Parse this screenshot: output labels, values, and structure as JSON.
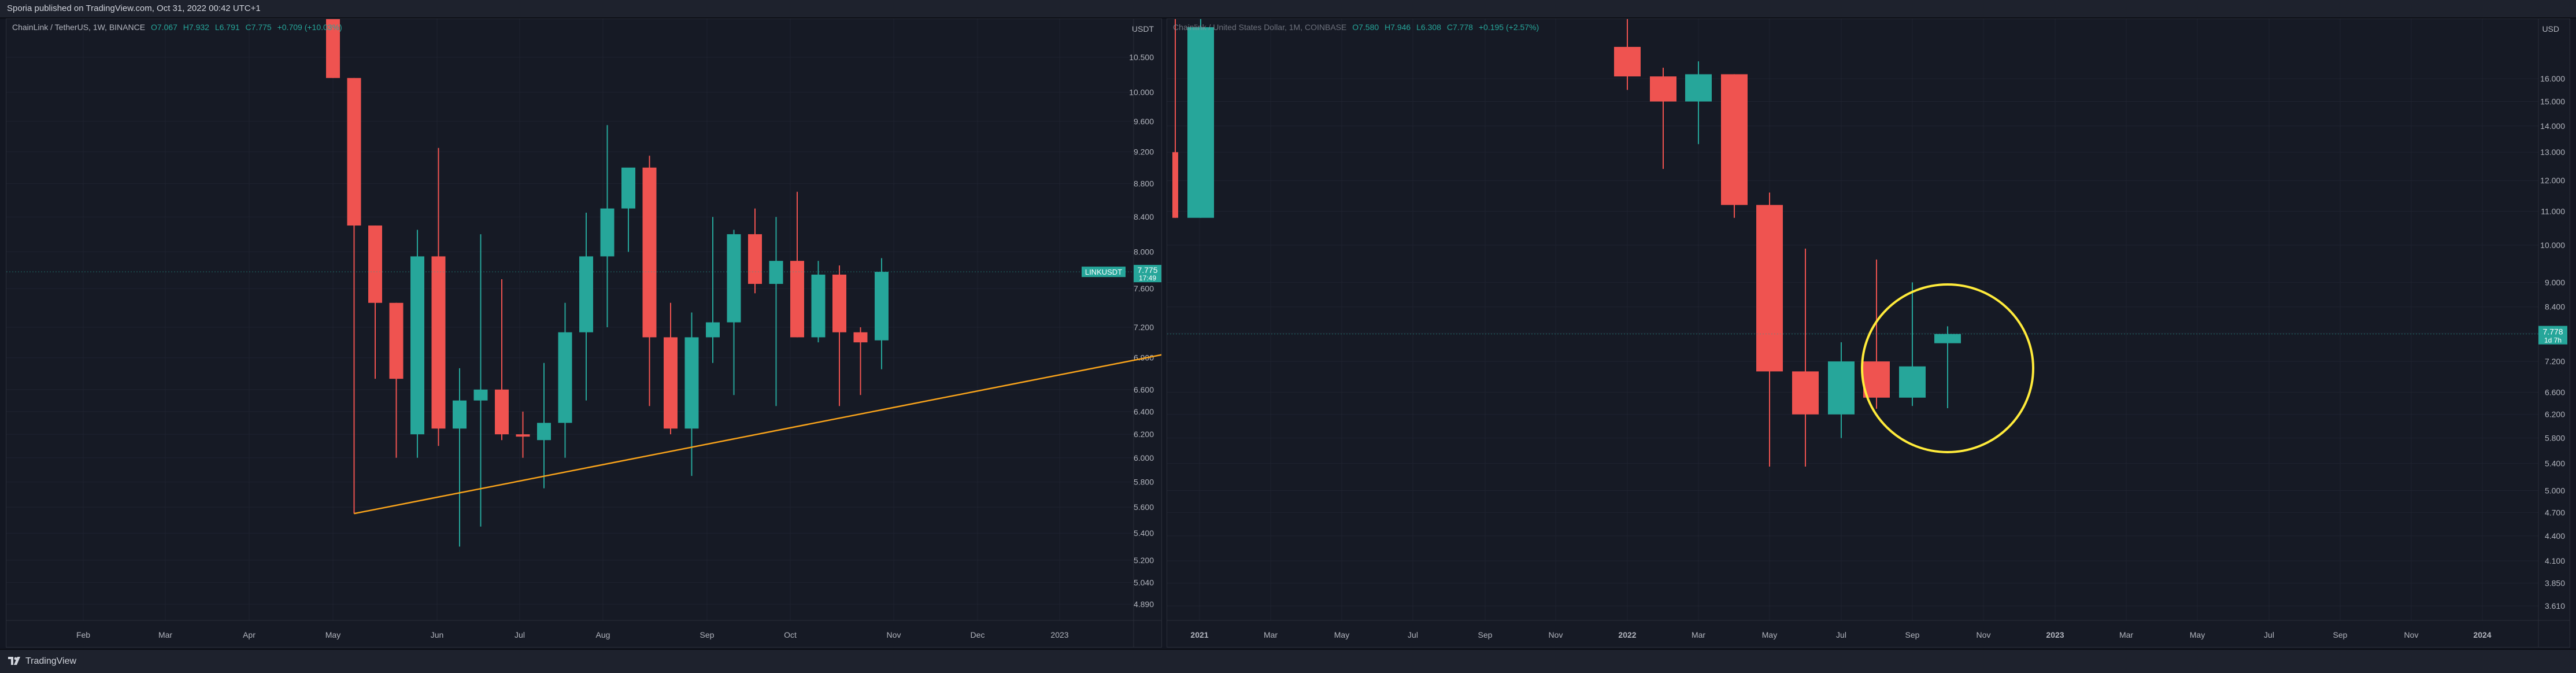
{
  "header": {
    "published": "Sporia published on TradingView.com, Oct 31, 2022 00:42 UTC+1"
  },
  "footer": {
    "brand": "TradingView",
    "logo_icon": "tradingview-logo-icon"
  },
  "colors": {
    "up": "#26a69a",
    "down": "#ef5350",
    "trendline": "#f7a21b",
    "circle": "#ffeb3b",
    "background": "#131722"
  },
  "chart_data": [
    {
      "type": "candlestick",
      "symbol": "ChainLink / TetherUS, 1W, BINANCE",
      "ohlc": {
        "open": "O7.067",
        "high": "H7.932",
        "low": "L6.791",
        "close": "C7.775",
        "change": "+0.709 (+10.03%)"
      },
      "currency": "USDT",
      "price_label": {
        "symbol": "LINKUSDT",
        "price": "7.775",
        "countdown": "17:49"
      },
      "y_axis": {
        "ticks": [
          "10.500",
          "10.000",
          "9.600",
          "9.200",
          "8.800",
          "8.400",
          "8.000",
          "7.600",
          "7.200",
          "6.900",
          "6.600",
          "6.400",
          "6.200",
          "6.000",
          "5.800",
          "5.600",
          "5.400",
          "5.200",
          "5.040",
          "4.890"
        ],
        "scale": "log"
      },
      "x_axis": {
        "ticks": [
          "Feb",
          "Mar",
          "Apr",
          "May",
          "Jun",
          "Jul",
          "Aug",
          "Sep",
          "Oct",
          "Nov",
          "Dec",
          "2023"
        ]
      },
      "candles": [
        {
          "o": 11.8,
          "h": 12.6,
          "l": 10.2,
          "c": 10.2
        },
        {
          "o": 10.2,
          "h": 10.2,
          "l": 5.55,
          "c": 8.3
        },
        {
          "o": 8.3,
          "h": 8.3,
          "l": 6.7,
          "c": 7.45
        },
        {
          "o": 7.45,
          "h": 7.45,
          "l": 6.0,
          "c": 6.7
        },
        {
          "o": 6.2,
          "h": 8.25,
          "l": 6.0,
          "c": 7.95
        },
        {
          "o": 7.95,
          "h": 9.25,
          "l": 6.1,
          "c": 6.25
        },
        {
          "o": 6.25,
          "h": 6.8,
          "l": 5.3,
          "c": 6.5
        },
        {
          "o": 6.5,
          "h": 8.2,
          "l": 5.45,
          "c": 6.6
        },
        {
          "o": 6.6,
          "h": 7.7,
          "l": 6.15,
          "c": 6.2
        },
        {
          "o": 6.2,
          "h": 6.4,
          "l": 6.0,
          "c": 6.18
        },
        {
          "o": 6.15,
          "h": 6.85,
          "l": 5.75,
          "c": 6.3
        },
        {
          "o": 6.3,
          "h": 7.45,
          "l": 6.0,
          "c": 7.15
        },
        {
          "o": 7.15,
          "h": 8.45,
          "l": 6.5,
          "c": 7.95
        },
        {
          "o": 7.95,
          "h": 9.55,
          "l": 7.2,
          "c": 8.5
        },
        {
          "o": 8.5,
          "h": 8.95,
          "l": 8.0,
          "c": 9.0
        },
        {
          "o": 9.0,
          "h": 9.15,
          "l": 6.45,
          "c": 7.1
        },
        {
          "o": 7.1,
          "h": 7.45,
          "l": 6.2,
          "c": 6.25
        },
        {
          "o": 6.25,
          "h": 7.35,
          "l": 5.85,
          "c": 7.1
        },
        {
          "o": 7.1,
          "h": 8.4,
          "l": 6.85,
          "c": 7.25
        },
        {
          "o": 7.25,
          "h": 8.25,
          "l": 6.55,
          "c": 8.2
        },
        {
          "o": 8.2,
          "h": 8.5,
          "l": 7.55,
          "c": 7.65
        },
        {
          "o": 7.65,
          "h": 8.4,
          "l": 6.45,
          "c": 7.9
        },
        {
          "o": 7.9,
          "h": 8.7,
          "l": 7.1,
          "c": 7.1
        },
        {
          "o": 7.1,
          "h": 7.9,
          "l": 7.05,
          "c": 7.75
        },
        {
          "o": 7.75,
          "h": 7.85,
          "l": 6.45,
          "c": 7.15
        },
        {
          "o": 7.15,
          "h": 7.2,
          "l": 6.55,
          "c": 7.05
        },
        {
          "o": 7.07,
          "h": 7.93,
          "l": 6.79,
          "c": 7.78
        }
      ],
      "trendline": {
        "from": {
          "candle": 1,
          "price": 5.55
        },
        "to": {
          "candle": 43,
          "price": 7.08
        }
      }
    },
    {
      "type": "candlestick",
      "symbol": "Chainlink / United States Dollar, 1M, COINBASE",
      "ohlc": {
        "open": "O7.580",
        "high": "H7.946",
        "low": "L6.308",
        "close": "C7.778",
        "change": "+0.195 (+2.57%)"
      },
      "currency": "USD",
      "price_label": {
        "price": "7.778",
        "countdown": "1d 7h"
      },
      "y_axis": {
        "ticks": [
          "16.000",
          "15.000",
          "14.000",
          "13.000",
          "12.000",
          "11.000",
          "10.000",
          "9.000",
          "8.400",
          "7.800",
          "7.200",
          "6.600",
          "6.200",
          "5.800",
          "5.400",
          "5.000",
          "4.700",
          "4.400",
          "4.100",
          "3.850",
          "3.610"
        ],
        "scale": "log"
      },
      "x_axis": {
        "ticks": [
          "2021",
          "Mar",
          "May",
          "Jul",
          "Sep",
          "Nov",
          "2022",
          "Mar",
          "May",
          "Jul",
          "Sep",
          "Nov",
          "2023",
          "Mar",
          "May",
          "Jul",
          "Sep",
          "Nov",
          "2024"
        ]
      },
      "candles": [
        {
          "o": 13.0,
          "h": 19.0,
          "l": 10.8,
          "c": 10.8
        },
        {
          "o": 10.8,
          "h": 20.0,
          "l": 10.8,
          "c": 18.5
        },
        {
          "o": 17.5,
          "h": 19.0,
          "l": 15.5,
          "c": 16.1
        },
        {
          "o": 16.1,
          "h": 16.5,
          "l": 12.4,
          "c": 15.0
        },
        {
          "o": 15.0,
          "h": 16.8,
          "l": 13.3,
          "c": 16.2
        },
        {
          "o": 16.2,
          "h": 16.2,
          "l": 10.8,
          "c": 11.2
        },
        {
          "o": 11.2,
          "h": 11.6,
          "l": 5.35,
          "c": 7.0
        },
        {
          "o": 7.0,
          "h": 9.9,
          "l": 5.35,
          "c": 6.2
        },
        {
          "o": 6.2,
          "h": 7.6,
          "l": 5.8,
          "c": 7.2
        },
        {
          "o": 7.2,
          "h": 9.6,
          "l": 6.3,
          "c": 6.5
        },
        {
          "o": 6.5,
          "h": 9.0,
          "l": 6.35,
          "c": 7.1
        },
        {
          "o": 7.58,
          "h": 7.95,
          "l": 6.31,
          "c": 7.78
        }
      ]
    }
  ],
  "annotations": {
    "circle_icon": "highlight-circle"
  }
}
